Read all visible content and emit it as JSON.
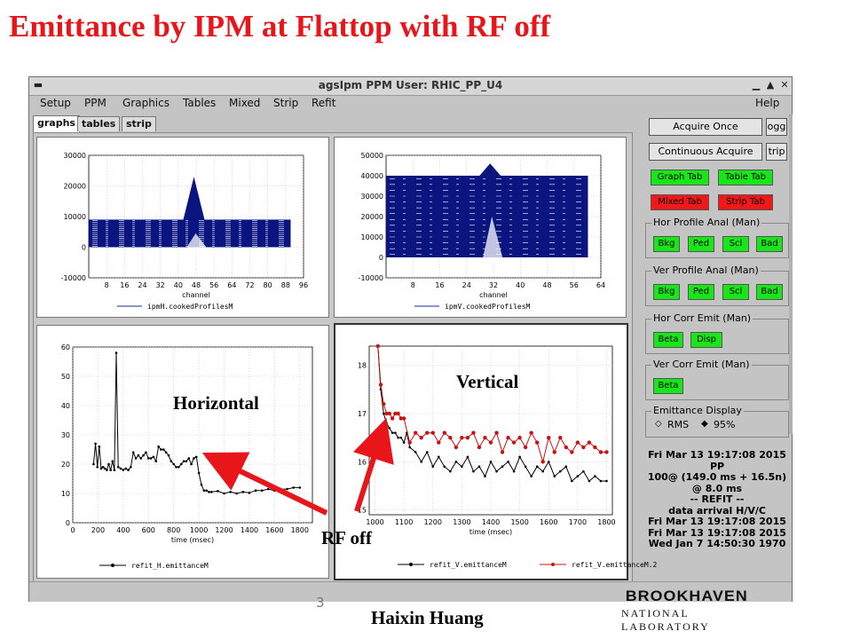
{
  "slide": {
    "title": "Emittance by IPM at Flattop with RF off",
    "author": "Haixin Huang",
    "page_number": "3",
    "logo_text_bottom": "NATIONAL LABORATORY",
    "logo_text_top": "BROOKHAVEN"
  },
  "window": {
    "title": "agsIpm      PPM User: RHIC_PP_U4",
    "menu": [
      "Setup",
      "PPM",
      "Graphics",
      "Tables",
      "Mixed",
      "Strip",
      "Refit",
      "Help"
    ],
    "tabs": [
      "graphs",
      "tables",
      "strip"
    ]
  },
  "controls": {
    "acquire_once": "Acquire Once",
    "continuous_acquire": "Continuous Acquire",
    "logg_partial": "ogg",
    "strip_partial": "trip",
    "graph_tab": "Graph Tab",
    "table_tab": "Table Tab",
    "mixed_tab": "Mixed Tab",
    "strip_tab": "Strip Tab",
    "hor_profile_label": "Hor Profile Anal (Man)",
    "ver_profile_label": "Ver Profile Anal (Man)",
    "hor_corr_label": "Hor Corr Emit (Man)",
    "ver_corr_label": "Ver Corr Emit (Man)",
    "emittance_display_label": "Emittance Display",
    "bkg": "Bkg",
    "ped": "Ped",
    "scl": "Scl",
    "bad": "Bad",
    "beta": "Beta",
    "disp": "Disp",
    "rms": "RMS",
    "pct95": "95%",
    "colors": {
      "green": "#19e619",
      "red": "#f01818"
    }
  },
  "status_lines": [
    "Fri Mar 13 19:17:08 2015",
    "PP",
    "100@ (149.0 ms + 16.5n)",
    "@   8.0 ms",
    "-- REFIT --",
    "data arrival H/V/C",
    "Fri Mar 13 19:17:08 2015",
    "Fri Mar 13 19:17:08 2015",
    "Wed Jan  7 14:50:30 1970"
  ],
  "annotations": {
    "horizontal": "Horizontal",
    "vertical": "Vertical",
    "rf_off": "RF off"
  },
  "chart_data": [
    {
      "type": "area",
      "xlabel": "channel",
      "x_ticks": [
        "8",
        "16",
        "24",
        "32",
        "40",
        "48",
        "56",
        "64",
        "72",
        "80",
        "88",
        "96"
      ],
      "y_ticks": [
        "30000",
        "20000",
        "10000",
        "0",
        "-10000"
      ],
      "ylim": [
        -10000,
        30000
      ],
      "xlim": [
        0,
        96
      ],
      "legend": "ipmH.cookedProfilesM",
      "peak": {
        "x": 47,
        "y": 23000
      },
      "band_top": 9000,
      "color": "#0a1580"
    },
    {
      "type": "area",
      "xlabel": "channel",
      "x_ticks": [
        "8",
        "16",
        "24",
        "32",
        "40",
        "48",
        "56",
        "64"
      ],
      "y_ticks": [
        "50000",
        "40000",
        "30000",
        "20000",
        "10000",
        "0",
        "-10000"
      ],
      "ylim": [
        -10000,
        50000
      ],
      "xlim": [
        0,
        64
      ],
      "legend": "ipmV.cookedProfilesM",
      "peak": {
        "x": 31,
        "y": 46000
      },
      "band_top": 40000,
      "color": "#0a1580"
    },
    {
      "type": "line",
      "xlabel": "time (msec)",
      "x_ticks": [
        "0",
        "200",
        "400",
        "600",
        "800",
        "1000",
        "1200",
        "1400",
        "1600",
        "1800"
      ],
      "y_ticks": [
        "60",
        "50",
        "40",
        "30",
        "20",
        "10",
        "0"
      ],
      "xlim": [
        0,
        1900
      ],
      "ylim": [
        0,
        60
      ],
      "legend": "refit_H.emittanceM",
      "series": [
        {
          "name": "refit_H.emittanceM",
          "color": "#000000",
          "x": [
            165,
            180,
            195,
            210,
            225,
            240,
            255,
            270,
            285,
            300,
            315,
            330,
            345,
            360,
            380,
            400,
            420,
            440,
            460,
            480,
            500,
            520,
            540,
            560,
            580,
            600,
            620,
            640,
            660,
            680,
            700,
            720,
            740,
            760,
            780,
            800,
            820,
            840,
            860,
            880,
            900,
            920,
            940,
            960,
            980,
            1000,
            1020,
            1040,
            1060,
            1080,
            1100,
            1150,
            1200,
            1250,
            1300,
            1350,
            1400,
            1450,
            1500,
            1550,
            1600,
            1650,
            1700,
            1750,
            1800
          ],
          "y": [
            20,
            27,
            19,
            26,
            18.5,
            19,
            18.5,
            18,
            20,
            18,
            21,
            18,
            58,
            19,
            18.5,
            18,
            18.5,
            18,
            19,
            24,
            22,
            23,
            22,
            23,
            24,
            22,
            22,
            22.5,
            21,
            26,
            25,
            25,
            24,
            23,
            21,
            20,
            19,
            19,
            20,
            21,
            21,
            22,
            20,
            22,
            22.5,
            17,
            13,
            11,
            11,
            10.5,
            10.5,
            10.8,
            10,
            10.5,
            10,
            10.5,
            10.2,
            11,
            11,
            11.5,
            11,
            11.5,
            11.5,
            12,
            12
          ]
        }
      ]
    },
    {
      "type": "line",
      "xlabel": "time (msec)",
      "x_ticks": [
        "1000",
        "1100",
        "1200",
        "1300",
        "1400",
        "1500",
        "1600",
        "1700",
        "1800"
      ],
      "y_ticks": [
        "18",
        "17",
        "16",
        "15"
      ],
      "xlim": [
        980,
        1820
      ],
      "ylim": [
        14.9,
        18.4
      ],
      "legend_entries": [
        "refit_V.emittanceM",
        "refit_V.emittanceM.2"
      ],
      "series": [
        {
          "name": "refit_V.emittanceM",
          "color": "#000000",
          "x": [
            1010,
            1020,
            1030,
            1040,
            1050,
            1060,
            1070,
            1080,
            1090,
            1100,
            1110,
            1120,
            1140,
            1160,
            1180,
            1200,
            1220,
            1240,
            1260,
            1280,
            1300,
            1320,
            1340,
            1360,
            1380,
            1400,
            1420,
            1440,
            1460,
            1480,
            1500,
            1520,
            1540,
            1560,
            1580,
            1600,
            1620,
            1640,
            1660,
            1680,
            1700,
            1720,
            1740,
            1760,
            1780,
            1800
          ],
          "y": [
            18.4,
            17.5,
            17.0,
            16.8,
            16.7,
            16.6,
            16.6,
            16.5,
            16.5,
            16.4,
            16.6,
            16.3,
            16.2,
            16.0,
            16.2,
            15.9,
            16.1,
            15.9,
            15.8,
            16.0,
            15.9,
            16.1,
            15.8,
            15.9,
            15.7,
            16.0,
            15.8,
            15.9,
            16.0,
            15.8,
            16.1,
            15.9,
            15.7,
            15.9,
            15.8,
            16.0,
            15.7,
            15.8,
            15.9,
            15.6,
            15.7,
            15.8,
            15.6,
            15.7,
            15.6,
            15.6
          ]
        },
        {
          "name": "refit_V.emittanceM.2",
          "color": "#cc1010",
          "x": [
            1010,
            1020,
            1030,
            1040,
            1050,
            1060,
            1070,
            1080,
            1090,
            1100,
            1120,
            1140,
            1160,
            1180,
            1200,
            1220,
            1240,
            1260,
            1280,
            1300,
            1320,
            1340,
            1360,
            1380,
            1400,
            1420,
            1440,
            1460,
            1480,
            1500,
            1520,
            1540,
            1560,
            1580,
            1600,
            1620,
            1640,
            1660,
            1680,
            1700,
            1720,
            1740,
            1760,
            1780,
            1800
          ],
          "y": [
            18.4,
            17.6,
            17.2,
            17.0,
            17.0,
            16.9,
            17.0,
            17.0,
            16.9,
            16.9,
            16.4,
            16.6,
            16.5,
            16.6,
            16.6,
            16.4,
            16.6,
            16.5,
            16.3,
            16.5,
            16.5,
            16.6,
            16.3,
            16.5,
            16.4,
            16.6,
            16.2,
            16.5,
            16.4,
            16.5,
            16.3,
            16.6,
            16.4,
            16.0,
            16.5,
            16.2,
            16.5,
            16.3,
            16.2,
            16.4,
            16.3,
            16.4,
            16.3,
            16.2,
            16.2
          ]
        }
      ]
    }
  ]
}
